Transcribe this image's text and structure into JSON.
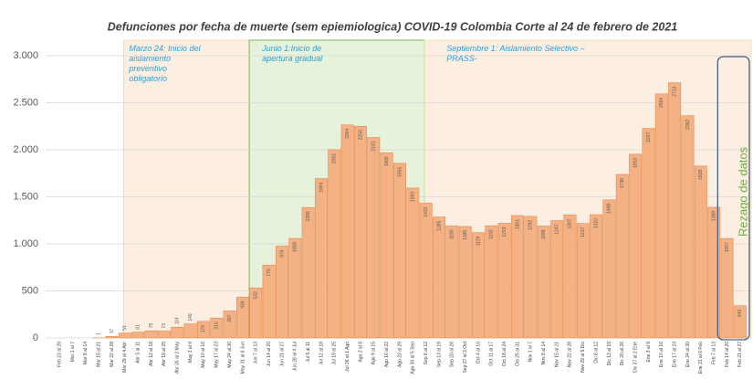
{
  "chart_data": {
    "type": "bar",
    "title": "Defunciones por fecha de muerte (sem epiemiologica) COVID-19 Colombia Corte al 24 de febrero de 2021",
    "categories": [
      "Feb 23 al 29",
      "Mar 1 al 7",
      "Mar 8 al 14",
      "Mar 15 al 21",
      "Mar 22 al 28",
      "Mar 29 al 4 Abr",
      "Abr 5 al 11",
      "Abr 12 al 18",
      "Abr 19 al 25",
      "Abr 26 al 2 May",
      "May 3 al 9",
      "May 10 al 16",
      "May 17 al 23",
      "May 24 al 30",
      "May 31 al 6 Jun",
      "Jun 7 al 13",
      "Jun 14 al 20",
      "Jun 21 al 27",
      "Jun 28 al 4 Jul",
      "Jul 5 al 11",
      "Jul 12 al 18",
      "Jul 19 al 25",
      "Jul 26 al 1 Ago",
      "Ago 2 al 8",
      "Ago 9 al 15",
      "Ago 16 al 22",
      "Ago 23 al 29",
      "Ago 30 al 5 Sep",
      "Sep 6 al 12",
      "Sep 13 al 19",
      "Sep 20 al 26",
      "Sep 27 al 3 Oct",
      "Oct 4 al 10",
      "Oct 11 al 17",
      "Oct 18 al 24",
      "Oct 25 al 31",
      "Nov 1 al 7",
      "Nov 8 al 14",
      "Nov 15 al 21",
      "Nov 22 al 28",
      "Nov 29 al 5 Dic",
      "Dic 6 al 12",
      "Dic 13 al 19",
      "Dic 20 al 26",
      "Dic 27 al 2 Ene",
      "Ene 3 al 9",
      "Ene 10 al 16",
      "Ene 17 al 23",
      "Ene 24 al 30",
      "Ene 31 al 6 Feb",
      "Feb 7 al 13",
      "Feb 14 al 20",
      "Feb 21 al 27"
    ],
    "values": [
      0,
      0,
      0,
      1,
      17,
      51,
      61,
      75,
      73,
      114,
      149,
      176,
      210,
      287,
      434,
      532,
      775,
      976,
      1058,
      1386,
      1694,
      2001,
      2264,
      2250,
      2131,
      1968,
      1856,
      1593,
      1432,
      1285,
      1190,
      1185,
      1119,
      1192,
      1219,
      1301,
      1292,
      1189,
      1247,
      1307,
      1217,
      1310,
      1468,
      1738,
      1953,
      2227,
      2594,
      2713,
      2362,
      1828,
      1389,
      1057,
      342
    ],
    "color": "#f4b183",
    "edge_color": "#e48a4f",
    "ylim": [
      0,
      3000
    ],
    "yticks": [
      0,
      500,
      {
        "value": 1000,
        "label": "1.000"
      },
      {
        "value": 1500,
        "label": "1.500"
      },
      {
        "value": 2000,
        "label": "2.000"
      },
      {
        "value": 2500,
        "label": "2.500"
      },
      {
        "value": 3000,
        "label": "3.000"
      }
    ],
    "grid": true,
    "annotations": [
      "Marzo 24: Inicio del aislamiento preventivo obligatorio",
      "Junio 1:Inicio de apertura gradual",
      "Septiembre 1: Aislamiento Selectivo – PRASS-",
      "Rezago de datos"
    ]
  }
}
